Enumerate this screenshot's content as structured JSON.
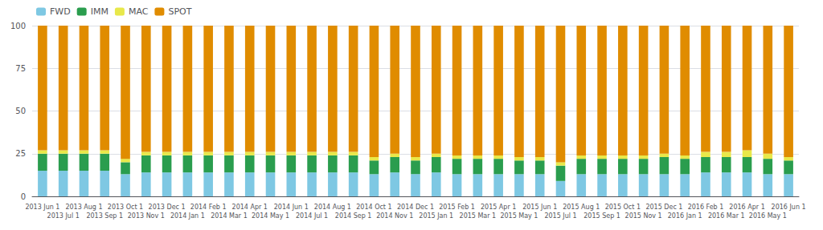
{
  "chart_data": {
    "type": "bar",
    "stacked": true,
    "categories": [
      "2013 Jun 1",
      "2013 Jul 1",
      "2013 Aug 1",
      "2013 Sep 1",
      "2013 Oct 1",
      "2013 Nov 1",
      "2013 Dec 1",
      "2014 Jan 1",
      "2014 Feb 1",
      "2014 Mar 1",
      "2014 Apr 1",
      "2014 May 1",
      "2014 Jun 1",
      "2014 Jul 1",
      "2014 Aug 1",
      "2014 Sep 1",
      "2014 Oct 1",
      "2014 Nov 1",
      "2014 Dec 1",
      "2015 Jan 1",
      "2015 Feb 1",
      "2015 Mar 1",
      "2015 Apr 1",
      "2015 May 1",
      "2015 Jun 1",
      "2015 Jul 1",
      "2015 Aug 1",
      "2015 Sep 1",
      "2015 Oct 1",
      "2015 Nov 1",
      "2015 Dec 1",
      "2016 Jan 1",
      "2016 Feb 1",
      "2016 Mar 1",
      "2016 Apr 1",
      "2016 May 1",
      "2016 Jun 1"
    ],
    "series": [
      {
        "name": "FWD",
        "color": "#7ec8e3",
        "values": [
          15,
          15,
          15,
          15,
          13,
          14,
          14,
          14,
          14,
          14,
          14,
          14,
          14,
          14,
          14,
          14,
          13,
          14,
          13,
          14,
          13,
          13,
          13,
          13,
          13,
          9,
          13,
          13,
          13,
          13,
          13,
          13,
          14,
          14,
          14,
          13,
          13
        ]
      },
      {
        "name": "IMM",
        "color": "#2a9d4e",
        "values": [
          10,
          10,
          10,
          10,
          7,
          10,
          10,
          10,
          10,
          10,
          10,
          10,
          10,
          10,
          10,
          10,
          8,
          9,
          8,
          9,
          9,
          9,
          9,
          8,
          8,
          9,
          9,
          9,
          9,
          9,
          10,
          9,
          9,
          9,
          9,
          9,
          8
        ]
      },
      {
        "name": "MAC",
        "color": "#e8e84a",
        "values": [
          2,
          2,
          2,
          2,
          2,
          2,
          2,
          2,
          2,
          2,
          2,
          2,
          2,
          2,
          2,
          2,
          2,
          2,
          2,
          2,
          2,
          2,
          2,
          2,
          2,
          2,
          2,
          2,
          2,
          2,
          2,
          2,
          3,
          3,
          4,
          3,
          2
        ]
      },
      {
        "name": "SPOT",
        "color": "#e08c00",
        "values": [
          73,
          73,
          73,
          73,
          78,
          74,
          74,
          74,
          74,
          74,
          74,
          74,
          74,
          74,
          74,
          74,
          77,
          75,
          77,
          75,
          76,
          76,
          76,
          77,
          77,
          80,
          76,
          76,
          76,
          76,
          75,
          76,
          74,
          74,
          73,
          75,
          77
        ]
      }
    ],
    "ylim": [
      0,
      100
    ],
    "yticks": [
      0,
      25,
      50,
      75,
      100
    ],
    "grid": true,
    "legend": "upper left"
  }
}
